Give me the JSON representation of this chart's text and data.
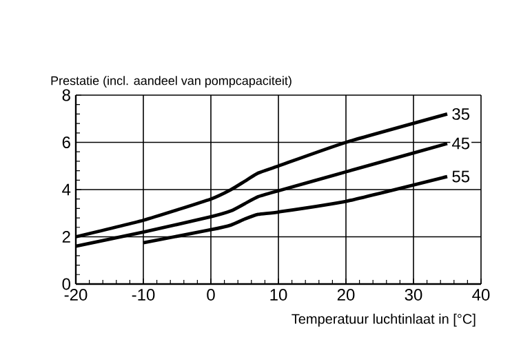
{
  "chart_data": {
    "type": "line",
    "ylabel": "Prestatie (incl. aandeel van pompcapaciteit)",
    "xlabel": "Temperatuur luchtinlaat in [°C]",
    "xlim": [
      -20,
      40
    ],
    "ylim": [
      0,
      8
    ],
    "xticks": [
      -20,
      -10,
      0,
      10,
      20,
      30,
      40
    ],
    "yticks": [
      0,
      2,
      4,
      6,
      8
    ],
    "grid": true,
    "legend": false,
    "marker": "none",
    "line_style": "solid",
    "series": [
      {
        "name": "35",
        "color": "#000000",
        "x": [
          -20,
          -10,
          0,
          3,
          5,
          7,
          10,
          20,
          35
        ],
        "values": [
          2.0,
          2.7,
          3.6,
          4.0,
          4.35,
          4.7,
          5.0,
          6.0,
          7.2
        ]
      },
      {
        "name": "45",
        "color": "#000000",
        "x": [
          -20,
          -10,
          0,
          3,
          5,
          7,
          10,
          20,
          35
        ],
        "values": [
          1.6,
          2.2,
          2.85,
          3.1,
          3.4,
          3.7,
          3.95,
          4.75,
          5.95
        ]
      },
      {
        "name": "55",
        "color": "#000000",
        "x": [
          -10,
          0,
          3,
          5,
          7,
          10,
          20,
          35
        ],
        "values": [
          1.75,
          2.3,
          2.5,
          2.75,
          2.95,
          3.05,
          3.5,
          4.55
        ]
      }
    ]
  }
}
